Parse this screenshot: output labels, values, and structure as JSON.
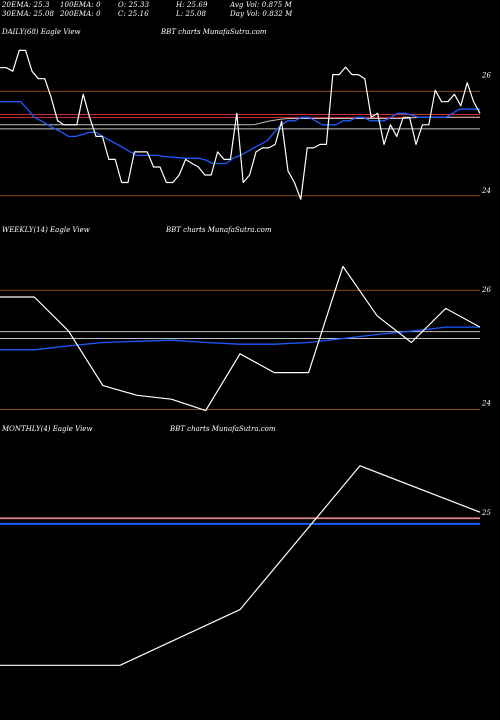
{
  "header": {
    "row1": [
      "20EMA: 25.3",
      "100EMA: 0",
      "O: 25.33",
      "H: 25.69",
      "Avg Vol: 0.875  M"
    ],
    "row2": [
      "30EMA: 25.08",
      "200EMA: 0",
      "C: 25.16",
      "L: 25.08",
      "Day Vol: 0.832  M"
    ]
  },
  "panels": {
    "daily": {
      "label": "DAILY(68) Eagle  View",
      "source": "BBT charts MunafaSutra.com"
    },
    "weekly": {
      "label": "WEEKLY(14) Eagle  View",
      "source": "BBT charts MunafaSutra.com"
    },
    "monthly": {
      "label": "MONTHLY(4) Eagle  View",
      "source": "BBT charts MunafaSutra.com"
    }
  },
  "colors": {
    "background": "#000000",
    "price": "#ffffff",
    "ema_fast": "#1e5bff",
    "ema_slow": "#bfbfbf",
    "ref_red": "#d03030",
    "ref_brown": "#8a4a1a"
  },
  "chart_data": [
    {
      "type": "line",
      "title": "DAILY(68) Eagle  View",
      "ylim": [
        23.55,
        26.6
      ],
      "yticks": [
        24,
        26
      ],
      "reference_lines": [
        25.71,
        25.31,
        25.26,
        25.06,
        23.9
      ],
      "series": [
        {
          "role": "price",
          "values": [
            26.12,
            26.12,
            26.06,
            26.42,
            26.42,
            26.06,
            25.93,
            25.93,
            25.6,
            25.2,
            25.13,
            25.13,
            25.13,
            25.66,
            25.26,
            24.93,
            24.93,
            24.53,
            24.53,
            24.13,
            24.13,
            24.66,
            24.66,
            24.66,
            24.4,
            24.4,
            24.13,
            24.13,
            24.26,
            24.53,
            24.46,
            24.4,
            24.26,
            24.26,
            24.66,
            24.53,
            24.53,
            25.33,
            24.13,
            24.26,
            24.66,
            24.73,
            24.73,
            24.79,
            25.19,
            24.33,
            24.13,
            23.84,
            24.73,
            24.73,
            24.79,
            24.79,
            26.0,
            26.0,
            26.13,
            26.0,
            26.0,
            25.93,
            25.26,
            25.33,
            24.79,
            25.13,
            24.93,
            25.26,
            25.26,
            24.79,
            25.13,
            25.13,
            25.73,
            25.53,
            25.53,
            25.66,
            25.46,
            25.86,
            25.53,
            25.33
          ]
        },
        {
          "role": "ema-fast",
          "values": [
            25.53,
            25.53,
            25.53,
            25.53,
            25.4,
            25.26,
            25.2,
            25.13,
            25.06,
            25.0,
            24.93,
            24.93,
            24.96,
            25.0,
            25.0,
            24.93,
            24.86,
            24.8,
            24.73,
            24.66,
            24.6,
            24.6,
            24.6,
            24.6,
            24.58,
            24.57,
            24.56,
            24.55,
            24.55,
            24.55,
            24.52,
            24.46,
            24.46,
            24.46,
            24.55,
            24.6,
            24.66,
            24.73,
            24.79,
            24.86,
            25.0,
            25.13,
            25.2,
            25.2,
            25.26,
            25.26,
            25.2,
            25.13,
            25.13,
            25.13,
            25.2,
            25.2,
            25.26,
            25.26,
            25.2,
            25.2,
            25.2,
            25.26,
            25.33,
            25.33,
            25.3,
            25.26,
            25.26,
            25.26,
            25.26,
            25.26,
            25.33,
            25.4,
            25.4,
            25.4,
            25.4
          ]
        },
        {
          "role": "ema-slow",
          "values": [
            25.13,
            25.13,
            25.13,
            25.13,
            25.13,
            25.13,
            25.13,
            25.13,
            25.13,
            25.13,
            25.13,
            25.13,
            25.13,
            25.13,
            25.13,
            25.13,
            25.13,
            25.13,
            25.13,
            25.13,
            25.13,
            25.13,
            25.13,
            25.13,
            25.13,
            25.13,
            25.13,
            25.13,
            25.13,
            25.13,
            25.13,
            25.13,
            25.13,
            25.13,
            25.13,
            25.13,
            25.13,
            25.13,
            25.16,
            25.19,
            25.21,
            25.23,
            25.24,
            25.24,
            25.24,
            25.24,
            25.24,
            25.24,
            25.24,
            25.24,
            25.24,
            25.24,
            25.24,
            25.24,
            25.24,
            25.24,
            25.24,
            25.24,
            25.24,
            25.24,
            25.25,
            25.26,
            25.26,
            25.26,
            25.26,
            25.26,
            25.26,
            25.26,
            25.26,
            25.26,
            25.26
          ]
        }
      ]
    },
    {
      "type": "line",
      "title": "WEEKLY(14) Eagle  View",
      "ylim": [
        23.8,
        26.9
      ],
      "yticks": [
        24,
        26
      ],
      "reference_lines": [
        25.98,
        25.25,
        25.13,
        23.88
      ],
      "series": [
        {
          "role": "price",
          "values": [
            25.86,
            25.86,
            25.26,
            24.3,
            24.13,
            24.06,
            23.86,
            24.86,
            24.53,
            24.53,
            26.4,
            25.53,
            25.06,
            25.66,
            25.33
          ]
        },
        {
          "role": "ema-fast",
          "values": [
            24.93,
            24.93,
            25.0,
            25.06,
            25.08,
            25.1,
            25.06,
            25.03,
            25.03,
            25.06,
            25.13,
            25.2,
            25.26,
            25.33,
            25.33
          ]
        },
        {
          "role": "ema-slow",
          "values": [
            25.13,
            25.13,
            25.13,
            25.13,
            25.13,
            25.13,
            25.13,
            25.13,
            25.13,
            25.13,
            25.13,
            25.13,
            25.13,
            25.13,
            25.13
          ]
        }
      ]
    },
    {
      "type": "line",
      "title": "MONTHLY(4) Eagle  View",
      "ylim": [
        20.65,
        26.6
      ],
      "yticks": [
        25
      ],
      "reference_lines": [
        24.87,
        24.75
      ],
      "series": [
        {
          "role": "price",
          "values": [
            21.7,
            21.7,
            22.9,
            26.0,
            25.0
          ]
        },
        {
          "role": "ema-fast",
          "values": [
            24.75,
            24.75,
            24.75,
            24.75,
            24.75
          ]
        },
        {
          "role": "ema-slow",
          "values": [
            24.87,
            24.87,
            24.87,
            24.87,
            24.87
          ]
        }
      ]
    }
  ]
}
